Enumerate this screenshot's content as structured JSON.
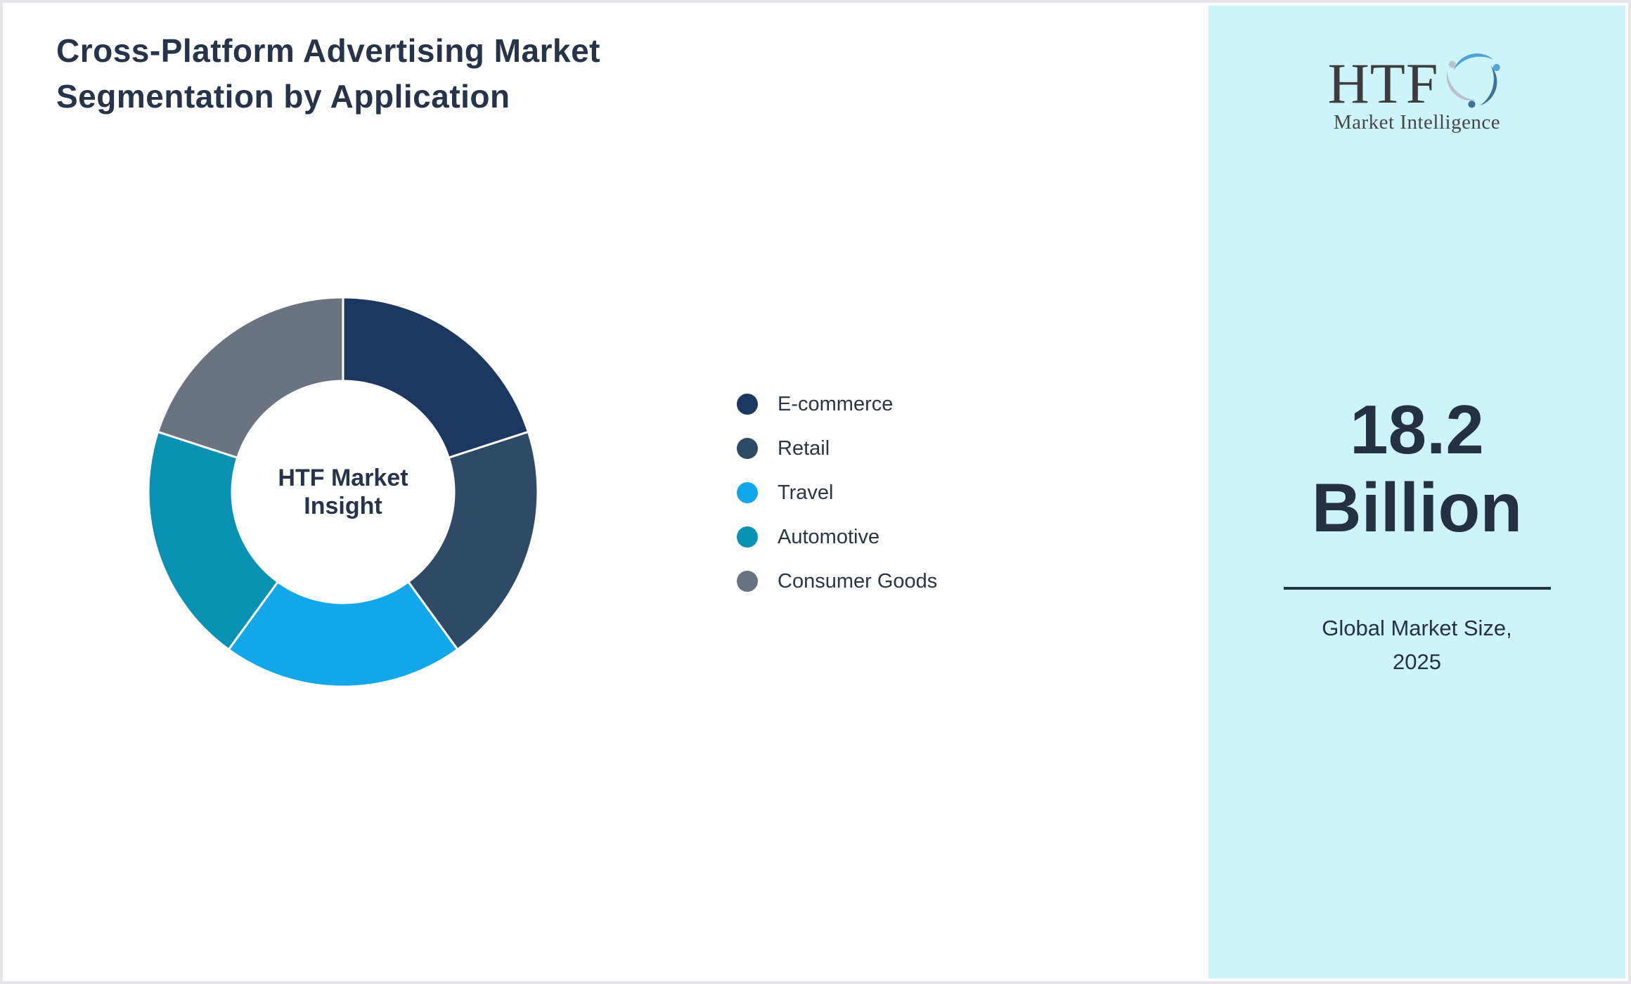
{
  "page": {
    "title_line1": "Cross-Platform Advertising Market",
    "title_line2": "Segmentation by Application"
  },
  "chart_data": {
    "type": "pie",
    "variant": "donut",
    "title": "Cross-Platform Advertising Market Segmentation by Application",
    "center_label_line1": "HTF Market",
    "center_label_line2": "Insight",
    "legend_position": "right",
    "start_angle_deg": 0,
    "direction": "clockwise",
    "outer_radius_px": 277,
    "inner_radius_px": 158,
    "segments": [
      {
        "label": "E-commerce",
        "value_pct": 20,
        "color": "#1c3860"
      },
      {
        "label": "Retail",
        "value_pct": 20,
        "color": "#2e4a66"
      },
      {
        "label": "Travel",
        "value_pct": 20,
        "color": "#12a7e8"
      },
      {
        "label": "Automotive",
        "value_pct": 20,
        "color": "#0891b2"
      },
      {
        "label": "Consumer Goods",
        "value_pct": 20,
        "color": "#6b7280"
      }
    ]
  },
  "sidebar": {
    "background": "#cdf3fb",
    "logo": {
      "acronym": "HTF",
      "subtitle": "Market Intelligence",
      "swirl_colors": [
        "#4da3d8",
        "#3c7199",
        "#b8c3cb"
      ]
    },
    "market_size_value": "18.2",
    "market_size_unit": "Billion",
    "caption_line1": "Global Market Size,",
    "caption_line2": "2025"
  },
  "colors": {
    "heading": "#263349",
    "divider": "#253246",
    "segment_gap": "#ffffff"
  }
}
